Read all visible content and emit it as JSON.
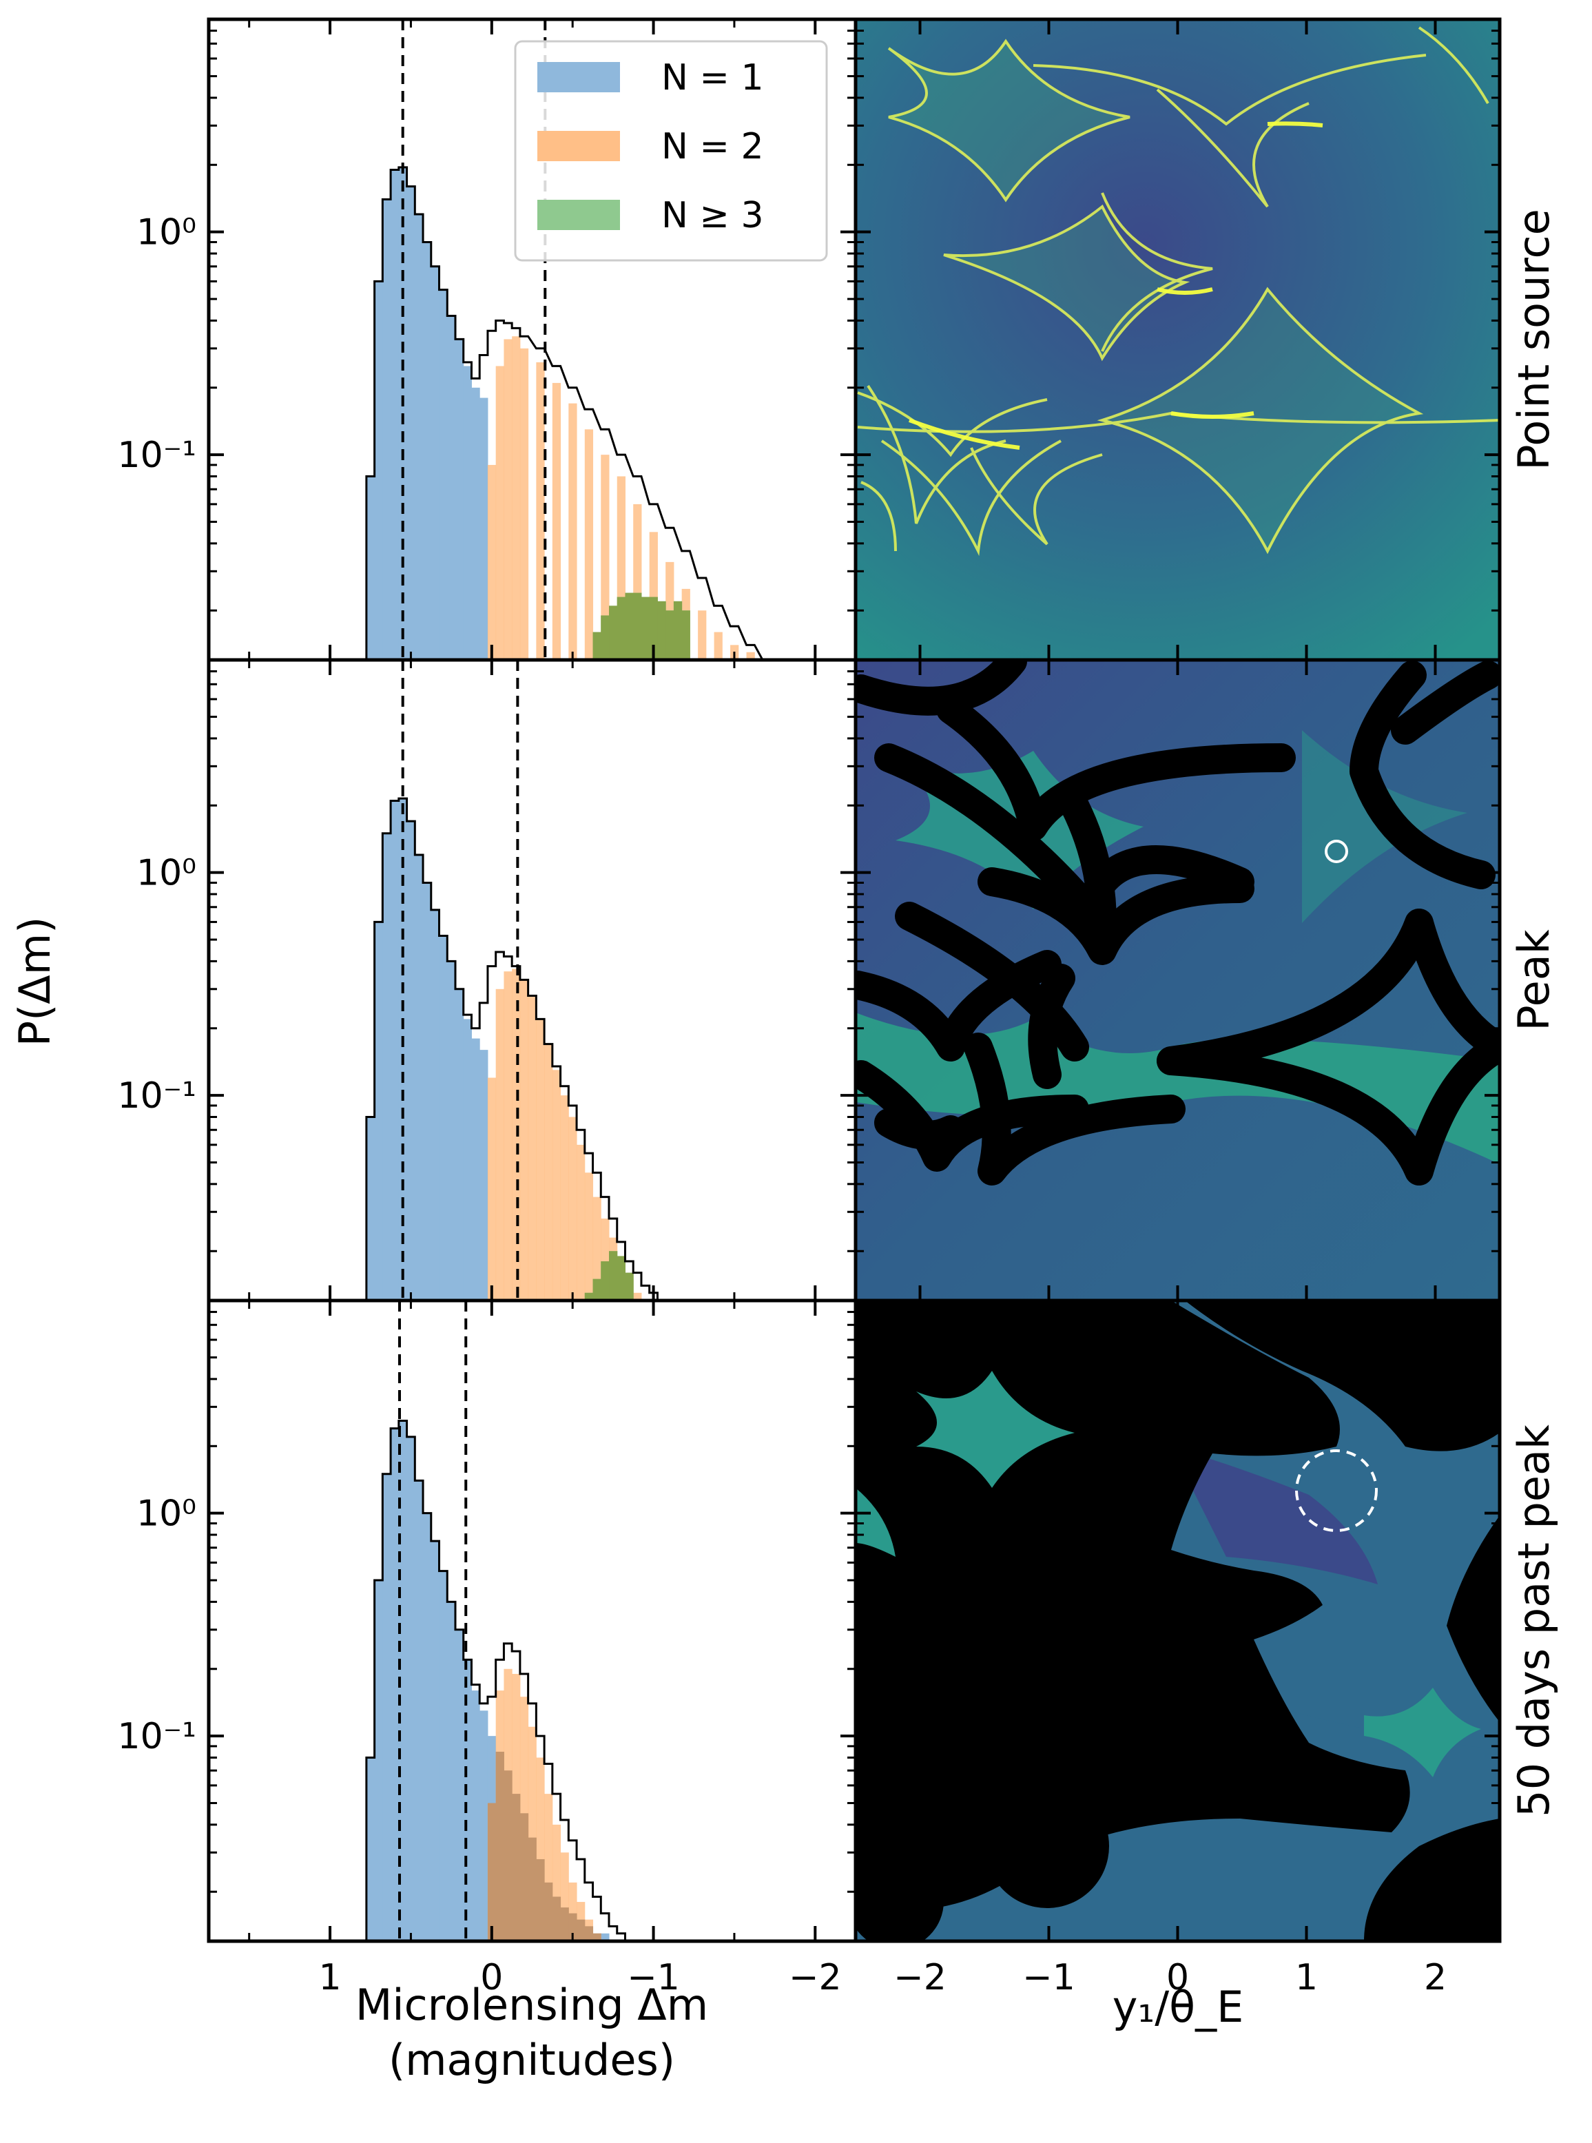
{
  "figure": {
    "ylabel": "P(Δm)",
    "xlabel_left_line1": "Microlensing Δm",
    "xlabel_left_line2": "(magnitudes)",
    "xlabel_right": "y₁/θ_E",
    "row_labels": [
      "Point source",
      "Peak",
      "50 days past peak"
    ],
    "legend": [
      "N = 1",
      "N = 2",
      "N ≥ 3"
    ],
    "y_tick_labels": [
      "10⁰",
      "10⁻¹"
    ],
    "x_tick_labels_left": [
      "1",
      "0",
      "−1",
      "−2"
    ],
    "x_tick_labels_right": [
      "−2",
      "−1",
      "0",
      "1",
      "2"
    ],
    "colors": {
      "n1": "#8fb8dc",
      "n2": "#ffbf87",
      "n3": "#8fc98f",
      "overlap12": "#c4956c",
      "overlap23": "#86a34a",
      "viridis_dark": "#3d4f8a",
      "viridis_mid": "#2a9a8c",
      "caustic": "#e8f54a"
    }
  },
  "chart_data": [
    {
      "type": "bar",
      "title": "Point source",
      "xlabel": "Microlensing Δm (magnitudes)",
      "ylabel": "P(Δm)",
      "xlim": [
        1.75,
        -2.25
      ],
      "ylim": [
        0.012,
        9
      ],
      "yscale": "log",
      "vlines": [
        0.55,
        -0.33
      ],
      "series": [
        {
          "name": "N = 1",
          "x": [
            0.75,
            0.7,
            0.65,
            0.6,
            0.55,
            0.5,
            0.45,
            0.4,
            0.35,
            0.3,
            0.25,
            0.2,
            0.15,
            0.1,
            0.05
          ],
          "values": [
            0.08,
            0.6,
            1.4,
            1.9,
            1.95,
            1.6,
            1.2,
            0.9,
            0.7,
            0.55,
            0.42,
            0.33,
            0.25,
            0.2,
            0.18
          ]
        },
        {
          "name": "N = 2",
          "x": [
            0.0,
            -0.05,
            -0.1,
            -0.15,
            -0.2,
            -0.3,
            -0.4,
            -0.5,
            -0.6,
            -0.7,
            -0.8,
            -0.9,
            -1.0,
            -1.1,
            -1.2,
            -1.3,
            -1.4,
            -1.5,
            -1.6
          ],
          "values": [
            0.09,
            0.25,
            0.33,
            0.34,
            0.3,
            0.26,
            0.21,
            0.17,
            0.13,
            0.1,
            0.08,
            0.06,
            0.045,
            0.033,
            0.025,
            0.02,
            0.016,
            0.014,
            0.013
          ]
        },
        {
          "name": "N ≥ 3",
          "x": [
            -0.65,
            -0.7,
            -0.75,
            -0.8,
            -0.85,
            -0.9,
            -0.95,
            -1.0,
            -1.05,
            -1.1,
            -1.15,
            -1.2
          ],
          "values": [
            0.016,
            0.019,
            0.021,
            0.023,
            0.024,
            0.024,
            0.023,
            0.023,
            0.022,
            0.02,
            0.022,
            0.02
          ]
        },
        {
          "name": "All",
          "x": [
            0.75,
            0.7,
            0.65,
            0.6,
            0.55,
            0.5,
            0.45,
            0.4,
            0.35,
            0.3,
            0.25,
            0.2,
            0.15,
            0.1,
            0.05,
            0.0,
            -0.05,
            -0.1,
            -0.15,
            -0.2,
            -0.3,
            -0.4,
            -0.5,
            -0.6,
            -0.7,
            -0.8,
            -0.9,
            -1.0,
            -1.1,
            -1.2,
            -1.3,
            -1.4,
            -1.5,
            -1.6,
            -1.7
          ],
          "values": [
            0.08,
            0.6,
            1.4,
            1.9,
            1.95,
            1.6,
            1.2,
            0.9,
            0.7,
            0.55,
            0.42,
            0.33,
            0.26,
            0.22,
            0.28,
            0.36,
            0.4,
            0.39,
            0.37,
            0.34,
            0.3,
            0.25,
            0.2,
            0.16,
            0.13,
            0.1,
            0.08,
            0.06,
            0.047,
            0.037,
            0.028,
            0.021,
            0.017,
            0.014,
            0.012
          ]
        }
      ]
    },
    {
      "type": "bar",
      "title": "Peak",
      "xlabel": "Microlensing Δm (magnitudes)",
      "ylabel": "P(Δm)",
      "xlim": [
        1.75,
        -2.25
      ],
      "ylim": [
        0.012,
        9
      ],
      "yscale": "log",
      "vlines": [
        0.55,
        -0.16
      ],
      "series": [
        {
          "name": "N = 1",
          "x": [
            0.75,
            0.7,
            0.65,
            0.6,
            0.55,
            0.5,
            0.45,
            0.4,
            0.35,
            0.3,
            0.25,
            0.2,
            0.15,
            0.1,
            0.05
          ],
          "values": [
            0.08,
            0.6,
            1.5,
            2.1,
            2.15,
            1.7,
            1.2,
            0.9,
            0.68,
            0.52,
            0.4,
            0.3,
            0.22,
            0.18,
            0.16
          ]
        },
        {
          "name": "N = 2",
          "x": [
            0.0,
            -0.05,
            -0.1,
            -0.15,
            -0.2,
            -0.25,
            -0.3,
            -0.35,
            -0.4,
            -0.45,
            -0.5,
            -0.55,
            -0.6,
            -0.65,
            -0.7,
            -0.75,
            -0.8,
            -0.85,
            -0.9
          ],
          "values": [
            0.12,
            0.3,
            0.36,
            0.37,
            0.33,
            0.28,
            0.22,
            0.17,
            0.13,
            0.1,
            0.08,
            0.06,
            0.045,
            0.035,
            0.028,
            0.023,
            0.018,
            0.015,
            0.013
          ]
        },
        {
          "name": "N ≥ 3",
          "x": [
            -0.6,
            -0.65,
            -0.7,
            -0.75,
            -0.8,
            -0.85
          ],
          "values": [
            0.013,
            0.015,
            0.018,
            0.02,
            0.019,
            0.016
          ]
        },
        {
          "name": "All",
          "x": [
            0.75,
            0.7,
            0.65,
            0.6,
            0.55,
            0.5,
            0.45,
            0.4,
            0.35,
            0.3,
            0.25,
            0.2,
            0.15,
            0.1,
            0.05,
            0.0,
            -0.05,
            -0.1,
            -0.15,
            -0.2,
            -0.25,
            -0.3,
            -0.35,
            -0.4,
            -0.45,
            -0.5,
            -0.55,
            -0.6,
            -0.65,
            -0.7,
            -0.75,
            -0.8,
            -0.85,
            -0.9,
            -0.95,
            -1.0,
            -1.05
          ],
          "values": [
            0.08,
            0.6,
            1.5,
            2.1,
            2.15,
            1.7,
            1.2,
            0.9,
            0.68,
            0.52,
            0.4,
            0.3,
            0.23,
            0.2,
            0.26,
            0.38,
            0.44,
            0.42,
            0.38,
            0.33,
            0.28,
            0.22,
            0.17,
            0.135,
            0.11,
            0.09,
            0.07,
            0.055,
            0.045,
            0.035,
            0.028,
            0.022,
            0.018,
            0.016,
            0.014,
            0.013,
            0.012
          ]
        }
      ]
    },
    {
      "type": "bar",
      "title": "50 days past peak",
      "xlabel": "Microlensing Δm (magnitudes)",
      "ylabel": "P(Δm)",
      "xlim": [
        1.75,
        -2.25
      ],
      "ylim": [
        0.012,
        9
      ],
      "yscale": "log",
      "vlines": [
        0.57,
        0.16
      ],
      "series": [
        {
          "name": "N = 1",
          "x": [
            0.75,
            0.7,
            0.65,
            0.6,
            0.55,
            0.5,
            0.45,
            0.4,
            0.35,
            0.3,
            0.25,
            0.2,
            0.15,
            0.1,
            0.05,
            0.0,
            -0.05,
            -0.1,
            -0.15,
            -0.2,
            -0.25,
            -0.3,
            -0.35,
            -0.4,
            -0.45,
            -0.5,
            -0.55,
            -0.6,
            -0.65,
            -0.7,
            -0.75
          ],
          "values": [
            0.08,
            0.5,
            1.5,
            2.4,
            2.6,
            2.2,
            1.4,
            1.0,
            0.75,
            0.55,
            0.4,
            0.3,
            0.22,
            0.16,
            0.13,
            0.1,
            0.085,
            0.07,
            0.055,
            0.045,
            0.035,
            0.028,
            0.022,
            0.019,
            0.017,
            0.016,
            0.015,
            0.014,
            0.013,
            0.013,
            0.012
          ]
        },
        {
          "name": "N = 2",
          "x": [
            0.0,
            -0.05,
            -0.1,
            -0.15,
            -0.2,
            -0.25,
            -0.3,
            -0.35,
            -0.4,
            -0.45,
            -0.5,
            -0.55,
            -0.6,
            -0.65,
            -0.7
          ],
          "values": [
            0.05,
            0.16,
            0.2,
            0.19,
            0.15,
            0.11,
            0.08,
            0.055,
            0.04,
            0.03,
            0.022,
            0.018,
            0.015,
            0.013,
            0.012
          ]
        },
        {
          "name": "All",
          "x": [
            0.75,
            0.7,
            0.65,
            0.6,
            0.55,
            0.5,
            0.45,
            0.4,
            0.35,
            0.3,
            0.25,
            0.2,
            0.15,
            0.1,
            0.05,
            0.0,
            -0.05,
            -0.1,
            -0.15,
            -0.2,
            -0.25,
            -0.3,
            -0.35,
            -0.4,
            -0.45,
            -0.5,
            -0.55,
            -0.6,
            -0.65,
            -0.7,
            -0.75,
            -0.8,
            -0.85,
            -0.9
          ],
          "values": [
            0.08,
            0.5,
            1.5,
            2.4,
            2.6,
            2.2,
            1.4,
            1.0,
            0.75,
            0.55,
            0.4,
            0.3,
            0.22,
            0.17,
            0.14,
            0.15,
            0.22,
            0.26,
            0.24,
            0.19,
            0.14,
            0.1,
            0.075,
            0.055,
            0.042,
            0.034,
            0.028,
            0.022,
            0.019,
            0.016,
            0.014,
            0.013,
            0.012,
            0.012
          ]
        }
      ]
    },
    {
      "type": "heatmap",
      "title": "Point source",
      "xlabel": "y₁/θ_E",
      "xlim": [
        -2.5,
        2.5
      ],
      "colormap": "viridis",
      "source_circle": null
    },
    {
      "type": "heatmap",
      "title": "Peak",
      "xlabel": "y₁/θ_E",
      "xlim": [
        -2.5,
        2.5
      ],
      "colormap": "viridis",
      "source_circle": {
        "x": 1.25,
        "style": "solid"
      }
    },
    {
      "type": "heatmap",
      "title": "50 days past peak",
      "xlabel": "y₁/θ_E",
      "xlim": [
        -2.5,
        2.5
      ],
      "colormap": "viridis",
      "source_circle": {
        "x": 1.25,
        "style": "dashed"
      }
    }
  ]
}
